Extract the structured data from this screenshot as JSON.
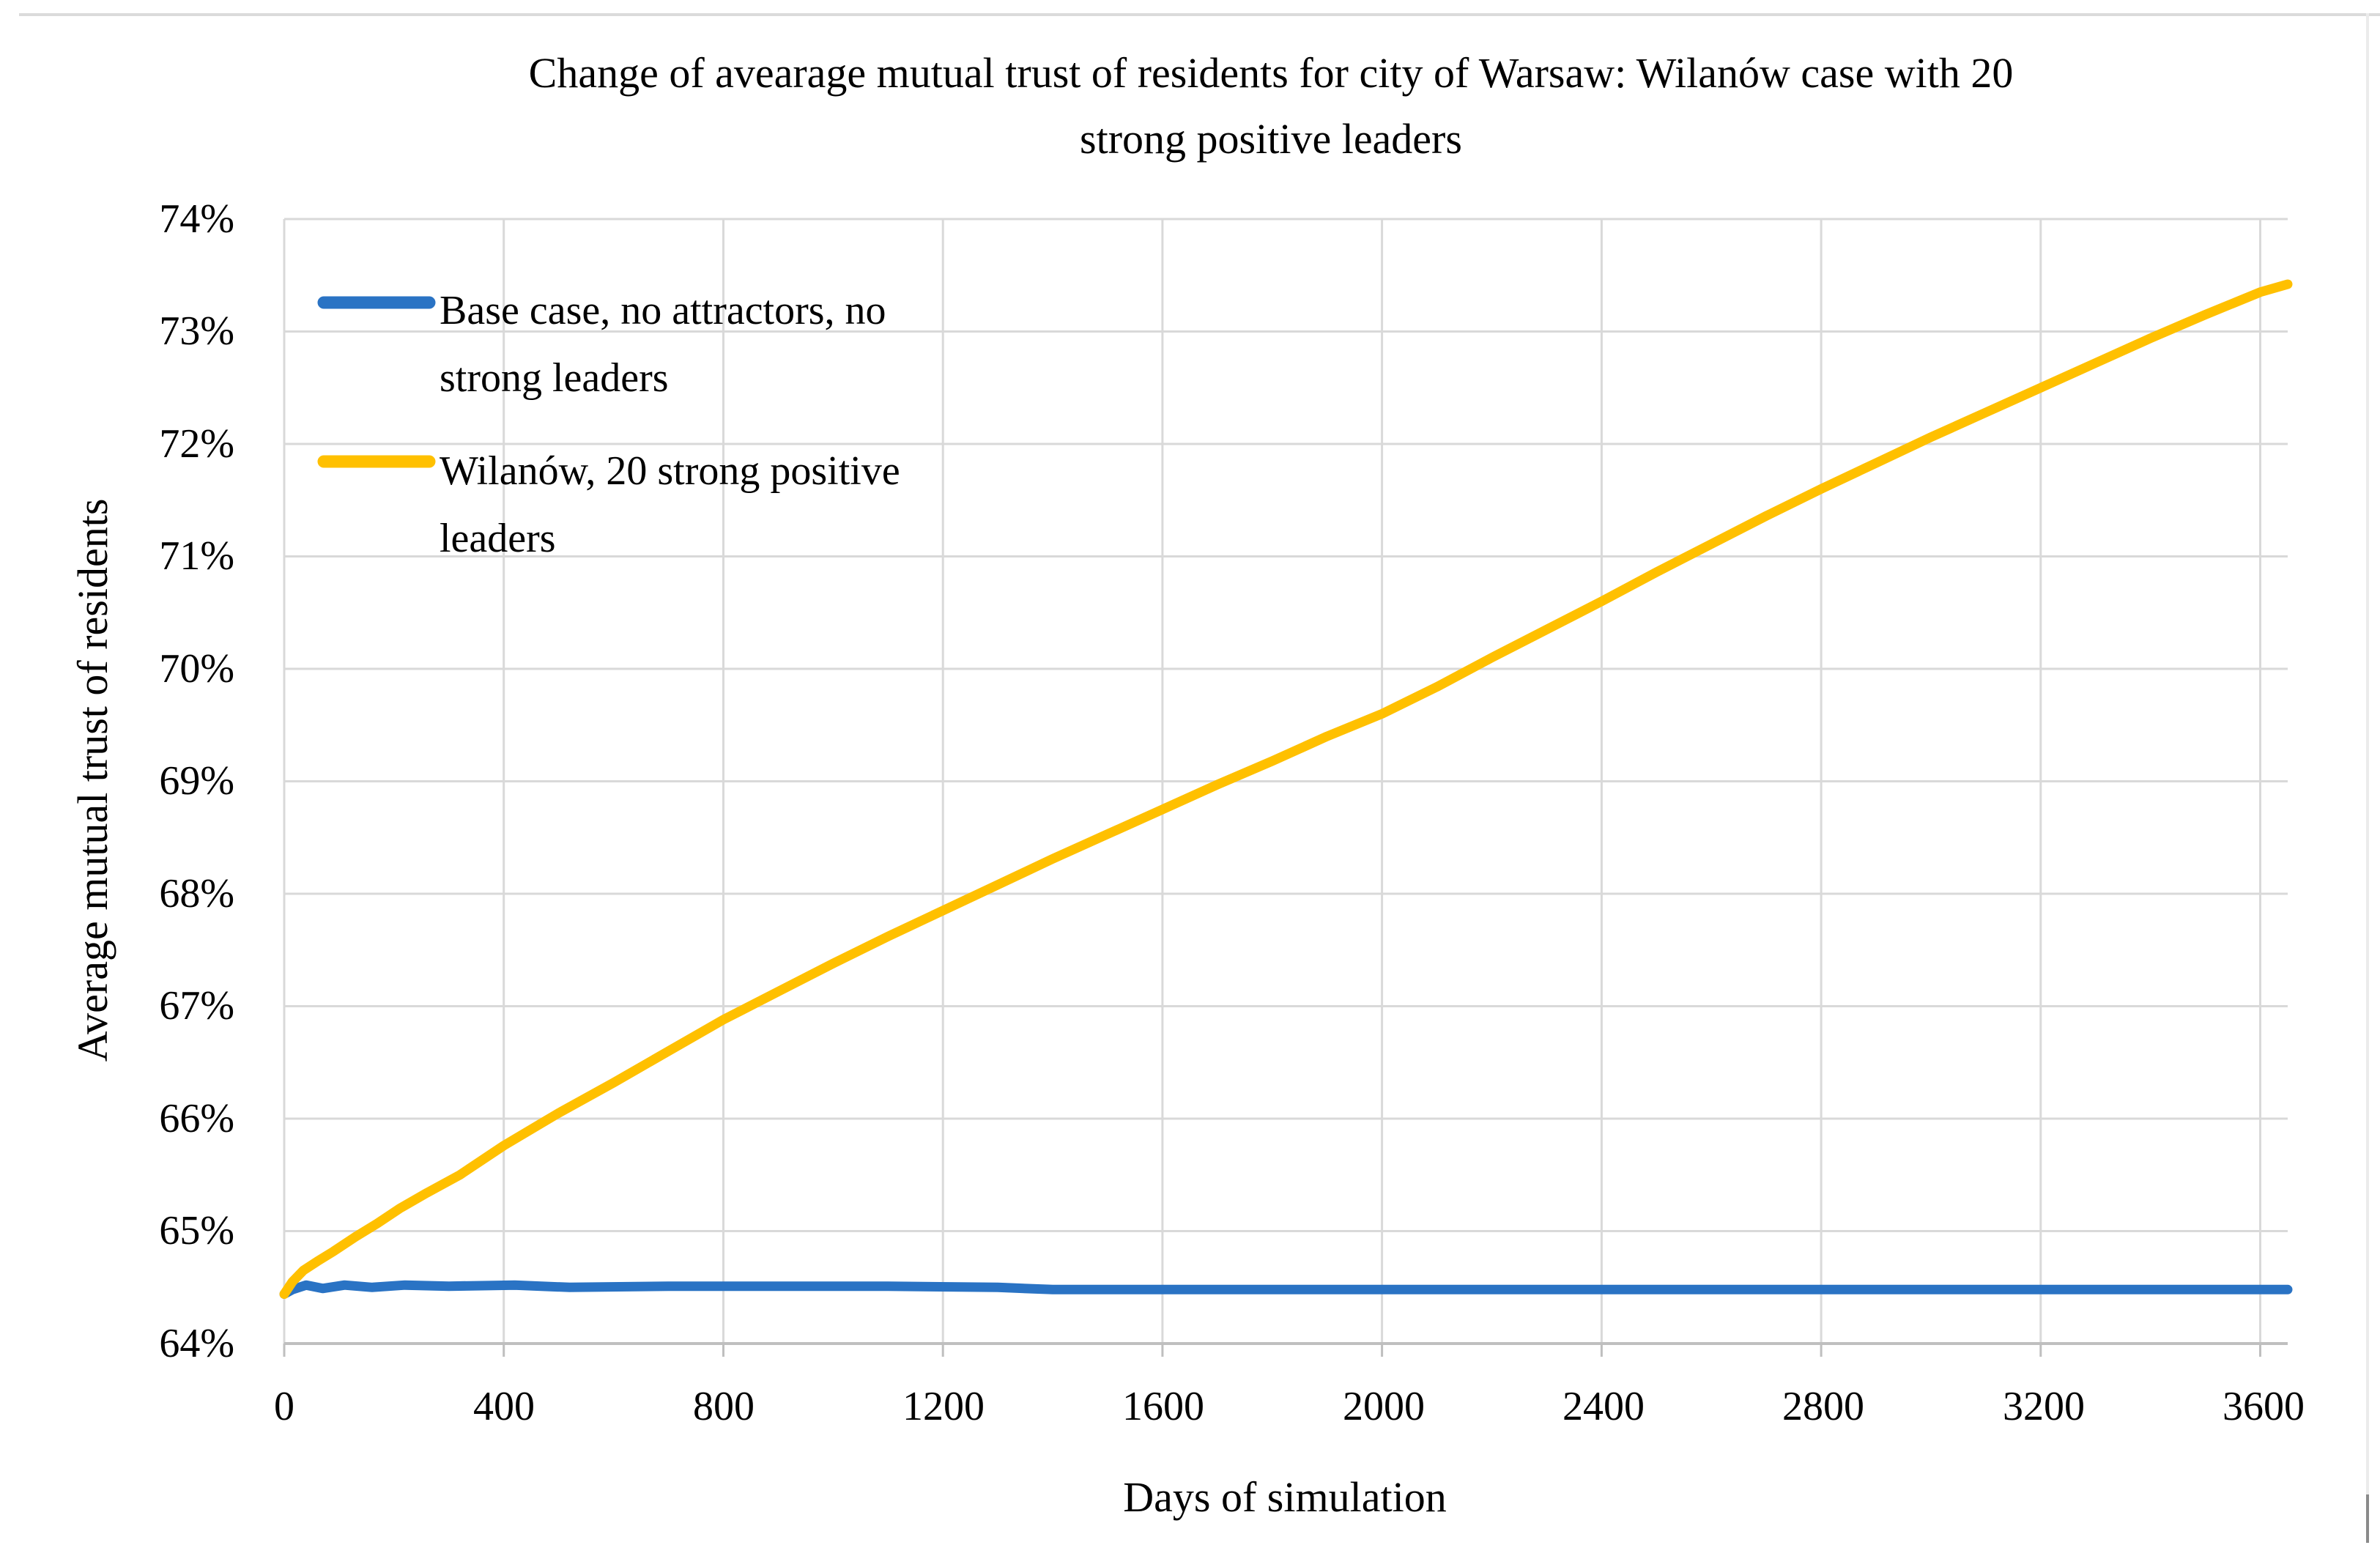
{
  "figure": {
    "background": "#ffffff",
    "borders": {
      "top_color": "#dbdbdb",
      "right_color": "#ebebeb",
      "right_bottom_color": "#8a8a8a"
    }
  },
  "chart_data": {
    "type": "line",
    "title": "Change of avearage mutual trust of residents for city of Warsaw: Wilanów case with 20 strong positive leaders",
    "title_lines": [
      "Change of avearage mutual trust of residents for city of Warsaw: Wilanów case with 20",
      "strong positive leaders"
    ],
    "xlabel": "Days of simulation",
    "ylabel": "Average mutual trust of residents",
    "xlim": [
      0,
      3650
    ],
    "ylim": [
      64,
      74
    ],
    "grid": {
      "show": true,
      "color": "#d9d9d9"
    },
    "axis_color": "#bfbfbf",
    "x_ticks": {
      "values": [
        0,
        400,
        800,
        1200,
        1600,
        2000,
        2400,
        2800,
        3200,
        3600
      ],
      "labels": [
        "0",
        "400",
        "800",
        "1200",
        "1600",
        "2000",
        "2400",
        "2800",
        "3200",
        "3600"
      ]
    },
    "y_ticks": {
      "values": [
        74,
        73,
        72,
        71,
        70,
        69,
        68,
        67,
        66,
        65,
        64
      ],
      "labels": [
        "74%",
        "73%",
        "72%",
        "71%",
        "70%",
        "69%",
        "68%",
        "67%",
        "66%",
        "65%",
        "64%"
      ]
    },
    "legend": {
      "position": "top-left-inside",
      "items": [
        {
          "label": "Base case, no attractors, no strong leaders",
          "label_lines": [
            "Base case, no attractors, no",
            "strong leaders"
          ],
          "color": "#2a73c4"
        },
        {
          "label": "Wilanów, 20 strong positive leaders",
          "label_lines": [
            "Wilanów, 20 strong positive",
            "leaders"
          ],
          "color": "#ffc000"
        }
      ]
    },
    "series": [
      {
        "name": "Base case, no attractors, no strong leaders",
        "color": "#2a73c4",
        "points": [
          [
            0,
            64.44
          ],
          [
            15,
            64.48
          ],
          [
            40,
            64.52
          ],
          [
            70,
            64.49
          ],
          [
            110,
            64.52
          ],
          [
            160,
            64.5
          ],
          [
            220,
            64.52
          ],
          [
            300,
            64.51
          ],
          [
            420,
            64.52
          ],
          [
            520,
            64.5
          ],
          [
            700,
            64.51
          ],
          [
            900,
            64.51
          ],
          [
            1100,
            64.51
          ],
          [
            1300,
            64.5
          ],
          [
            1400,
            64.48
          ],
          [
            1600,
            64.48
          ],
          [
            2000,
            64.48
          ],
          [
            2400,
            64.48
          ],
          [
            2800,
            64.48
          ],
          [
            3200,
            64.48
          ],
          [
            3650,
            64.48
          ]
        ]
      },
      {
        "name": "Wilanów, 20 strong positive leaders",
        "color": "#ffc000",
        "points": [
          [
            0,
            64.44
          ],
          [
            15,
            64.55
          ],
          [
            35,
            64.65
          ],
          [
            60,
            64.73
          ],
          [
            90,
            64.82
          ],
          [
            130,
            64.95
          ],
          [
            170,
            65.07
          ],
          [
            210,
            65.2
          ],
          [
            260,
            65.34
          ],
          [
            320,
            65.5
          ],
          [
            400,
            65.76
          ],
          [
            500,
            66.05
          ],
          [
            600,
            66.32
          ],
          [
            700,
            66.6
          ],
          [
            800,
            66.88
          ],
          [
            900,
            67.13
          ],
          [
            1000,
            67.38
          ],
          [
            1100,
            67.62
          ],
          [
            1200,
            67.85
          ],
          [
            1300,
            68.08
          ],
          [
            1400,
            68.31
          ],
          [
            1500,
            68.53
          ],
          [
            1600,
            68.75
          ],
          [
            1700,
            68.97
          ],
          [
            1800,
            69.18
          ],
          [
            1900,
            69.4
          ],
          [
            2000,
            69.6
          ],
          [
            2100,
            69.84
          ],
          [
            2200,
            70.1
          ],
          [
            2300,
            70.35
          ],
          [
            2400,
            70.6
          ],
          [
            2500,
            70.86
          ],
          [
            2600,
            71.11
          ],
          [
            2700,
            71.36
          ],
          [
            2800,
            71.6
          ],
          [
            2900,
            71.83
          ],
          [
            3000,
            72.06
          ],
          [
            3100,
            72.28
          ],
          [
            3200,
            72.5
          ],
          [
            3300,
            72.72
          ],
          [
            3400,
            72.94
          ],
          [
            3500,
            73.15
          ],
          [
            3600,
            73.35
          ],
          [
            3650,
            73.42
          ]
        ]
      }
    ]
  }
}
